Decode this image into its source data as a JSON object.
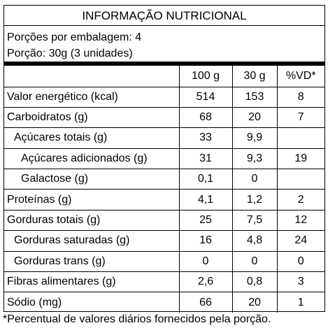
{
  "title": "INFORMAÇÃO NUTRICIONAL",
  "servings_per_package": "Porções por embalagem: 4",
  "serving_size": "Porção: 30g (3 unidades)",
  "columns": [
    "",
    "100 g",
    "30 g",
    "%VD*"
  ],
  "rows": [
    {
      "name": "Valor energético (kcal)",
      "per100": "514",
      "per30": "153",
      "vd": "8"
    },
    {
      "name": "Carboidratos (g)",
      "per100": "68",
      "per30": "20",
      "vd": "7"
    },
    {
      "name": "Açúcares totais (g)",
      "per100": "33",
      "per30": "9,9",
      "vd": ""
    },
    {
      "name": "Açúcares adicionados (g)",
      "per100": "31",
      "per30": "9,3",
      "vd": "19"
    },
    {
      "name": "Galactose (g)",
      "per100": "0,1",
      "per30": "0",
      "vd": ""
    },
    {
      "name": "Proteínas (g)",
      "per100": "4,1",
      "per30": "1,2",
      "vd": "2"
    },
    {
      "name": "Gorduras totais (g)",
      "per100": "25",
      "per30": "7,5",
      "vd": "12"
    },
    {
      "name": "Gorduras saturadas (g)",
      "per100": "16",
      "per30": "4,8",
      "vd": "24"
    },
    {
      "name": "Gorduras trans (g)",
      "per100": "0",
      "per30": "0",
      "vd": "0"
    },
    {
      "name": "Fibras alimentares (g)",
      "per100": "2,6",
      "per30": "0,8",
      "vd": "3"
    },
    {
      "name": "Sódio (mg)",
      "per100": "66",
      "per30": "20",
      "vd": "1"
    }
  ],
  "footnote": "*Percentual de valores diários fornecidos pela porção."
}
